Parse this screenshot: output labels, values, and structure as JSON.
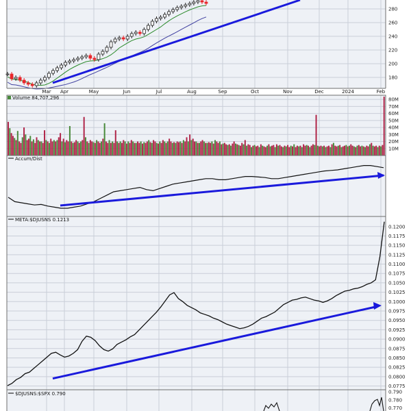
{
  "chart_data": {
    "type": "line",
    "x_ticks": [
      "Mar",
      "Apr",
      "May",
      "Jun",
      "Jul",
      "Aug",
      "Sep",
      "Oct",
      "Nov",
      "Dec",
      "2024",
      "Feb"
    ],
    "price": {
      "type": "candlestick",
      "y_ticks": [
        180,
        200,
        220,
        240,
        260,
        280
      ],
      "ylim": [
        164,
        293
      ],
      "up_color": "#222222",
      "down_color": "#e8262b",
      "ma_short_color": "#2a8a2a",
      "ma_long_color": "#4040a0",
      "trend_color": "#1a1adc",
      "close_values": [
        185,
        178,
        180,
        176,
        172,
        170,
        168,
        172,
        176,
        180,
        186,
        190,
        194,
        198,
        202,
        204,
        206,
        208,
        210,
        212,
        208,
        206,
        214,
        218,
        224,
        232,
        236,
        238,
        236,
        240,
        244,
        246,
        244,
        250,
        256,
        262,
        266,
        268,
        272,
        276,
        279,
        282,
        284,
        286,
        288,
        290,
        292,
        290,
        288
      ]
    },
    "volume": {
      "type": "bar",
      "label": "Volume 84,707,296",
      "y_ticks": [
        "10M",
        "20M",
        "30M",
        "40M",
        "50M",
        "60M",
        "70M",
        "80M"
      ],
      "ylim": [
        0,
        86
      ],
      "up_color": "#4a8a3c",
      "down_color": "#b0264a",
      "values": [
        48,
        39,
        32,
        28,
        25,
        22,
        35,
        20,
        18,
        26,
        40,
        30,
        22,
        24,
        28,
        20,
        23,
        18,
        26,
        22,
        20,
        20,
        18,
        36,
        22,
        20,
        18,
        24,
        20,
        22,
        20,
        22,
        26,
        32,
        20,
        24,
        19,
        22,
        20,
        42,
        20,
        18,
        19,
        22,
        20,
        18,
        20,
        22,
        55,
        26,
        20,
        18,
        22,
        20,
        19,
        18,
        22,
        20,
        18,
        20,
        24,
        46,
        20,
        18,
        22,
        18,
        20,
        18,
        36,
        20,
        18,
        20,
        18,
        22,
        20,
        17,
        20,
        18,
        22,
        20,
        18,
        18,
        20,
        18,
        20,
        17,
        19,
        18,
        20,
        22,
        19,
        18,
        22,
        20,
        18,
        17,
        20,
        18,
        22,
        20,
        18,
        20,
        24,
        20,
        18,
        19,
        18,
        20,
        19,
        20,
        18,
        22,
        20,
        26,
        20,
        30,
        22,
        24,
        20,
        20,
        18,
        18,
        20,
        22,
        20,
        18,
        18,
        19,
        18,
        20,
        17,
        22,
        20,
        18,
        20,
        16,
        17,
        18,
        16,
        15,
        16,
        14,
        17,
        20,
        17,
        16,
        15,
        14,
        18,
        16,
        22,
        14,
        16,
        15,
        12,
        14,
        15,
        13,
        14,
        12,
        16,
        14,
        13,
        12,
        14,
        16,
        13,
        14,
        15,
        12,
        16,
        14,
        15,
        13,
        12,
        14,
        13,
        15,
        12,
        14,
        13,
        16,
        12,
        14,
        13,
        14,
        12,
        16,
        14,
        15,
        14,
        12,
        14,
        16,
        15,
        58,
        14,
        13,
        14,
        13,
        14,
        12,
        13,
        14,
        12,
        16,
        18,
        14,
        13,
        14,
        15,
        12,
        13,
        14,
        15,
        13,
        14,
        16,
        14,
        13,
        12,
        14,
        15,
        13,
        14,
        13,
        12,
        14,
        13,
        16,
        18,
        14,
        13,
        14,
        12,
        14,
        13,
        15,
        84
      ]
    },
    "accum_dist": {
      "type": "line",
      "label": "Accum/Dist",
      "trend_color": "#1a1adc",
      "values": [
        30,
        22,
        20,
        18,
        16,
        17,
        14,
        12,
        10,
        10,
        12,
        14,
        18,
        22,
        28,
        34,
        40,
        42,
        44,
        46,
        48,
        44,
        42,
        46,
        50,
        54,
        56,
        58,
        60,
        62,
        64,
        64,
        62,
        62,
        64,
        66,
        68,
        68,
        67,
        66,
        64,
        64,
        66,
        68,
        70,
        72,
        74,
        76,
        78,
        79,
        80,
        82,
        84,
        86,
        88,
        88,
        86,
        84
      ]
    },
    "ratio_meta": {
      "type": "line",
      "label": "META:$DJUSNS 0.1213",
      "y_ticks": [
        0.0775,
        0.08,
        0.0825,
        0.085,
        0.0875,
        0.09,
        0.0925,
        0.095,
        0.0975,
        0.1,
        0.1025,
        0.105,
        0.1075,
        0.11,
        0.1125,
        0.115,
        0.1175,
        0.12
      ],
      "ylim": [
        0.0765,
        0.1227
      ],
      "trend_color": "#1a1adc",
      "trend": [
        [
          0.0795,
          0.0986
        ]
      ],
      "values": [
        0.0776,
        0.0782,
        0.0792,
        0.0798,
        0.0808,
        0.0812,
        0.0822,
        0.0832,
        0.0842,
        0.0852,
        0.0862,
        0.0865,
        0.0858,
        0.0852,
        0.0855,
        0.0862,
        0.0872,
        0.0894,
        0.0908,
        0.0905,
        0.0896,
        0.0882,
        0.0872,
        0.0868,
        0.0874,
        0.0886,
        0.0892,
        0.0898,
        0.0906,
        0.0912,
        0.0924,
        0.0936,
        0.0948,
        0.096,
        0.0972,
        0.0986,
        0.1002,
        0.1018,
        0.1024,
        0.1008,
        0.1,
        0.099,
        0.0984,
        0.0978,
        0.097,
        0.0966,
        0.0962,
        0.0956,
        0.0952,
        0.0946,
        0.094,
        0.0936,
        0.0932,
        0.0928,
        0.093,
        0.0934,
        0.094,
        0.0948,
        0.0956,
        0.096,
        0.0966,
        0.0972,
        0.0982,
        0.0992,
        0.0998,
        0.1004,
        0.1006,
        0.101,
        0.1012,
        0.1008,
        0.1004,
        0.1002,
        0.0998,
        0.1002,
        0.1008,
        0.1016,
        0.1022,
        0.1028,
        0.103,
        0.1034,
        0.1036,
        0.104,
        0.1046,
        0.105,
        0.1058,
        0.112,
        0.1213
      ]
    },
    "ratio_spx": {
      "type": "line",
      "label": "$DJUSNS:$SPX 0.790",
      "y_ticks": [
        0.77,
        0.78,
        0.79
      ],
      "ylim": [
        0.7663,
        0.7925
      ]
    }
  }
}
